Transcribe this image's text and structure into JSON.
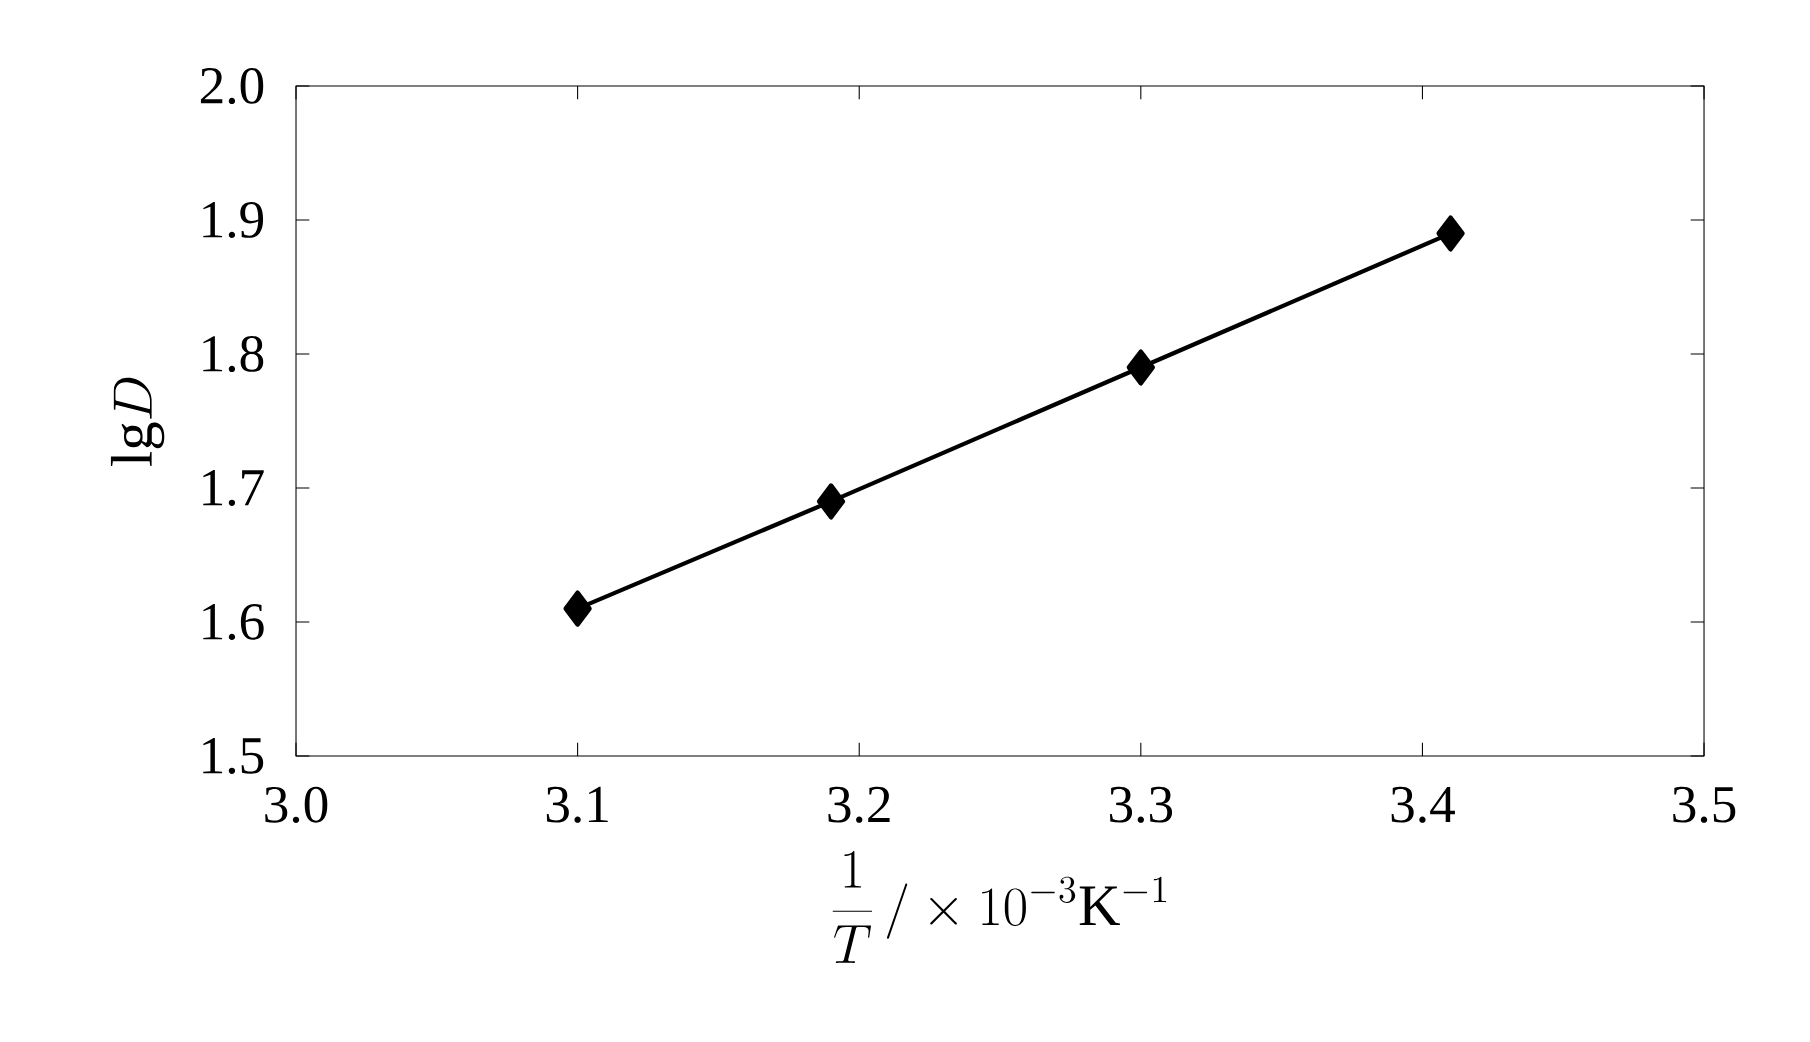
{
  "chart_data": {
    "type": "line",
    "xlabel": "\\frac{1}{T}\\,/\\times 10^{-3}\\mathrm{K}^{-1}",
    "ylabel": "\\mathrm{lg}D",
    "x": [
      3.1,
      3.19,
      3.3,
      3.41
    ],
    "series": [
      {
        "color": "#000000",
        "values": [
          1.61,
          1.69,
          1.79,
          1.89
        ]
      }
    ],
    "xlim": [
      3.0,
      3.5
    ],
    "ylim": [
      1.5,
      2.0
    ],
    "xticks": [
      {
        "value": 3.0,
        "label": "3.0"
      },
      3.1,
      3.2,
      3.3,
      3.4,
      3.5
    ],
    "yticks": [
      1.5,
      1.6,
      1.7,
      1.8,
      1.9,
      {
        "value": 2.0,
        "label": "2.0"
      }
    ],
    "grid": false,
    "marker": "diamond",
    "line_style": "solid"
  }
}
